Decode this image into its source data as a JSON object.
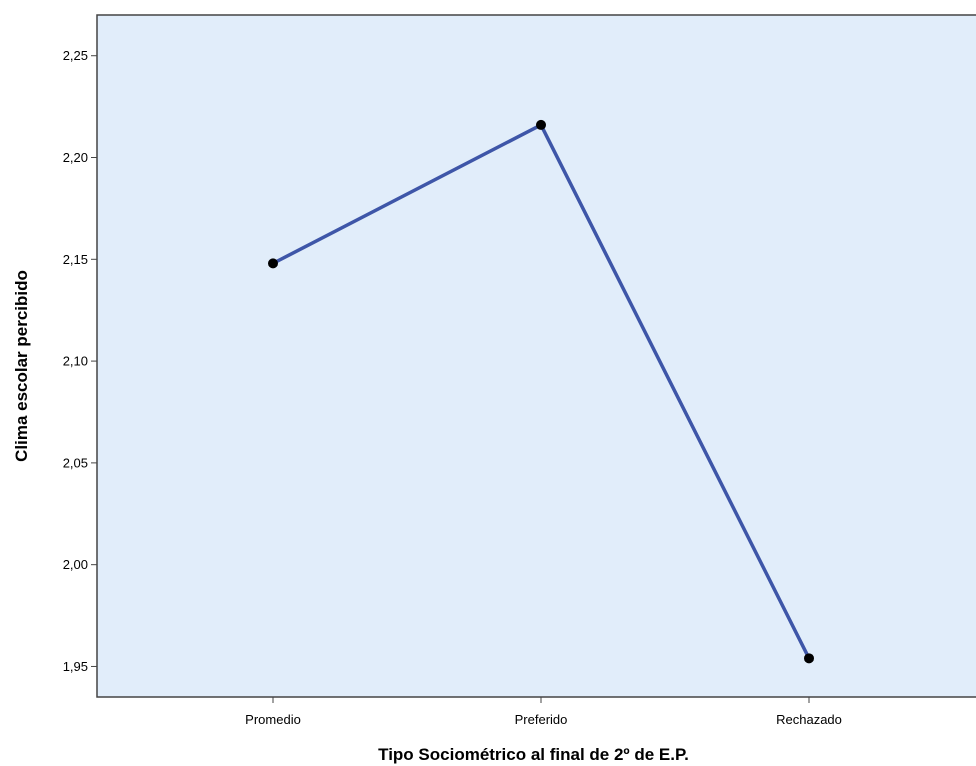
{
  "chart_data": {
    "type": "line",
    "title": "",
    "xlabel": "Tipo Sociométrico al final de 2º de E.P.",
    "ylabel": "Clima escolar percibido",
    "categories": [
      "Promedio",
      "Preferido",
      "Rechazado"
    ],
    "series": [
      {
        "values": [
          2.148,
          2.216,
          1.954
        ]
      }
    ],
    "ylim": [
      1.935,
      2.27
    ],
    "yticks": [
      1.95,
      2.0,
      2.05,
      2.1,
      2.15,
      2.2,
      2.25
    ],
    "ytick_labels": [
      "1,95",
      "2,00",
      "2,05",
      "2,10",
      "2,15",
      "2,20",
      "2,25"
    ],
    "grid": false,
    "legend": "none",
    "colors": {
      "plot_background": "#E1EDFA",
      "line": "#3E56A8",
      "marker": "#000000",
      "axis": "#444444"
    }
  }
}
